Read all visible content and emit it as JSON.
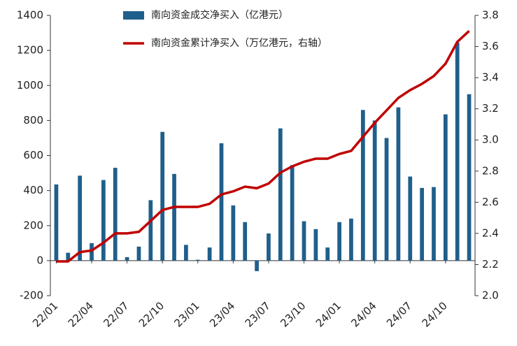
{
  "chart_data": {
    "type": "bar_line",
    "categories": [
      "22/01",
      null,
      null,
      "22/04",
      null,
      null,
      "22/07",
      null,
      null,
      "22/10",
      null,
      null,
      "23/01",
      null,
      null,
      "23/04",
      null,
      null,
      "23/07",
      null,
      null,
      "23/10",
      null,
      null,
      "24/01",
      null,
      null,
      "24/04",
      null,
      null,
      "24/07",
      null,
      null,
      "24/10",
      null,
      null
    ],
    "series": [
      {
        "name": "南向资金成交净买入（亿港元）",
        "type": "bar",
        "color": "#1f5f8b",
        "values": [
          435,
          45,
          485,
          100,
          460,
          530,
          20,
          80,
          345,
          735,
          495,
          90,
          5,
          75,
          670,
          315,
          220,
          -60,
          155,
          755,
          545,
          225,
          180,
          75,
          220,
          240,
          860,
          800,
          700,
          875,
          480,
          415,
          420,
          835,
          1245,
          950
        ]
      },
      {
        "name": "南向资金累计净买入（万亿港元，右轴）",
        "type": "line",
        "axis": "y2",
        "color": "#c00000",
        "values": [
          2.22,
          2.22,
          2.28,
          2.29,
          2.34,
          2.4,
          2.4,
          2.41,
          2.48,
          2.55,
          2.57,
          2.57,
          2.57,
          2.59,
          2.65,
          2.67,
          2.7,
          2.69,
          2.72,
          2.79,
          2.83,
          2.86,
          2.88,
          2.88,
          2.91,
          2.93,
          3.02,
          3.11,
          3.19,
          3.27,
          3.32,
          3.36,
          3.41,
          3.49,
          3.63,
          3.7
        ]
      }
    ],
    "ylim": [
      -200,
      1400
    ],
    "yticks": [
      -200,
      0,
      200,
      400,
      600,
      800,
      1000,
      1200,
      1400
    ],
    "y2lim": [
      2.0,
      3.8
    ],
    "y2ticks": [
      {
        "value": 2.0,
        "label": "2.0"
      },
      2.2,
      2.4,
      2.6,
      2.8,
      {
        "value": 3.0,
        "label": "3.0"
      },
      3.2,
      3.4,
      3.6,
      3.8
    ],
    "grid": false
  }
}
